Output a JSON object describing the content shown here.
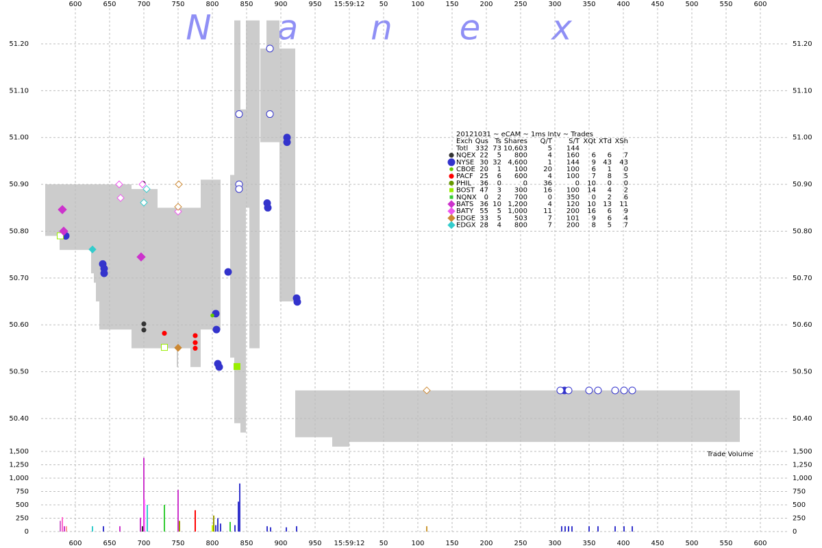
{
  "chart_data": {
    "type": "scatter",
    "watermark": [
      "N",
      "a",
      "n",
      "e",
      "x"
    ],
    "volume_label": "Trade Volume",
    "xlim": [
      550,
      1640
    ],
    "xticks": [
      600,
      650,
      700,
      750,
      800,
      850,
      900,
      950,
      {
        "value": 1000,
        "label": "15:59:12"
      },
      {
        "value": 1050,
        "label": "50"
      },
      {
        "value": 1100,
        "label": "100"
      },
      {
        "value": 1150,
        "label": "150"
      },
      {
        "value": 1200,
        "label": "200"
      },
      {
        "value": 1250,
        "label": "250"
      },
      {
        "value": 1300,
        "label": "300"
      },
      {
        "value": 1350,
        "label": "350"
      },
      {
        "value": 1400,
        "label": "400"
      },
      {
        "value": 1450,
        "label": "450"
      },
      {
        "value": 1500,
        "label": "500"
      },
      {
        "value": 1550,
        "label": "550"
      },
      {
        "value": 1600,
        "label": "600"
      }
    ],
    "ylim": [
      50.34,
      51.28
    ],
    "yticks": [
      {
        "value": 50.4,
        "label": "50.40"
      },
      {
        "value": 50.5,
        "label": "50.50"
      },
      {
        "value": 50.6,
        "label": "50.60"
      },
      {
        "value": 50.7,
        "label": "50.70"
      },
      {
        "value": 50.8,
        "label": "50.80"
      },
      {
        "value": 50.9,
        "label": "50.90"
      },
      {
        "value": 51.0,
        "label": "51.00"
      },
      {
        "value": 51.1,
        "label": "51.10"
      },
      {
        "value": 51.2,
        "label": "51.20"
      }
    ],
    "volume_ylim": [
      0,
      1500
    ],
    "volume_yticks": [
      0,
      250,
      500,
      750,
      {
        "value": 1000,
        "label": "1,000"
      },
      {
        "value": 1250,
        "label": "1,250"
      },
      {
        "value": 1500,
        "label": "1,500"
      }
    ],
    "grid": true,
    "spread": {
      "color": "#cccccc",
      "x": [
        556,
        577,
        623,
        627,
        630,
        635,
        682,
        720,
        748,
        750,
        768,
        783,
        826,
        832,
        841,
        849,
        854,
        870,
        879,
        898,
        921,
        975,
        1000
      ],
      "x_end": [
        580,
        623,
        627,
        630,
        635,
        682,
        720,
        748,
        750,
        768,
        783,
        812,
        832,
        841,
        849,
        854,
        869,
        879,
        898,
        921,
        975,
        1000,
        1570
      ],
      "low": [
        50.79,
        50.76,
        50.71,
        50.69,
        50.65,
        50.59,
        50.55,
        50.55,
        50.51,
        50.55,
        50.51,
        50.59,
        50.53,
        50.39,
        50.37,
        50.85,
        50.55,
        50.99,
        50.99,
        50.65,
        50.36,
        50.34,
        50.35
      ],
      "high": [
        50.9,
        50.9,
        50.9,
        50.9,
        50.9,
        50.9,
        50.89,
        50.85,
        50.85,
        50.85,
        50.85,
        50.91,
        50.92,
        51.25,
        51.06,
        51.25,
        51.25,
        51.19,
        51.25,
        51.19,
        50.46,
        50.46,
        50.46
      ]
    },
    "table": {
      "title": "20121031 ~ eCAM ~ 1ms Intv ~ Trades",
      "columns": [
        "Exch",
        "Qus",
        "Ts",
        "Shares",
        "Q/T",
        "S/T",
        "XQt",
        "XTd",
        "XSh"
      ],
      "total": {
        "label": "Totl",
        "stats": [
          "332",
          "73",
          "10,603",
          "5",
          "144"
        ]
      }
    },
    "series": [
      {
        "name": "NQEX",
        "color": "#333333",
        "marker": "dot",
        "size": 4,
        "stats": [
          "22",
          "5",
          "800",
          "4",
          "160",
          "6",
          "6",
          "7"
        ],
        "x": [
          700,
          700,
          699
        ],
        "values": [
          50.602,
          50.589,
          50.902
        ]
      },
      {
        "name": "NYSE",
        "color": "#3333cc",
        "marker": "circle",
        "size": 5,
        "stats": [
          "30",
          "32",
          "4,600",
          "1",
          "144",
          "9",
          "43",
          "43"
        ],
        "x": [
          586,
          640,
          642,
          642,
          805,
          806,
          808,
          810,
          823,
          880,
          881,
          909,
          909,
          923,
          924,
          1314,
          839,
          839,
          839,
          884,
          884,
          1308,
          1320,
          1350,
          1363,
          1388,
          1401,
          1413
        ],
        "values": [
          50.79,
          50.73,
          50.72,
          50.71,
          50.624,
          50.59,
          50.517,
          50.51,
          50.713,
          50.86,
          50.85,
          51.0,
          50.99,
          50.657,
          50.649,
          50.46,
          51.05,
          50.9,
          50.89,
          51.19,
          51.05,
          50.46,
          50.46,
          50.46,
          50.46,
          50.46,
          50.46,
          50.46
        ],
        "hollow": [
          false,
          false,
          false,
          false,
          false,
          false,
          false,
          false,
          false,
          false,
          false,
          false,
          false,
          false,
          false,
          false,
          true,
          true,
          true,
          true,
          true,
          true,
          true,
          true,
          true,
          true,
          true,
          true
        ]
      },
      {
        "name": "CBOE",
        "color": "#66cc00",
        "marker": "dot",
        "size": 3,
        "stats": [
          "20",
          "1",
          "100",
          "20",
          "100",
          "6",
          "1",
          "0"
        ],
        "x": [
          800,
          835
        ],
        "values": [
          50.62,
          50.511
        ]
      },
      {
        "name": "PACF",
        "color": "#ff0000",
        "marker": "dot",
        "size": 4,
        "stats": [
          "25",
          "6",
          "600",
          "4",
          "100",
          "7",
          "8",
          "5"
        ],
        "x": [
          730,
          775,
          775,
          775
        ],
        "values": [
          50.582,
          50.577,
          50.562,
          50.55
        ]
      },
      {
        "name": "PHIL",
        "color": "#669900",
        "marker": "dot",
        "size": 4,
        "stats": [
          "36",
          "0",
          "0",
          "36",
          "0",
          "10",
          "0",
          "0"
        ],
        "x": [],
        "values": []
      },
      {
        "name": "BOST",
        "color": "#99ee00",
        "marker": "square",
        "size": 9,
        "stats": [
          "47",
          "3",
          "300",
          "16",
          "100",
          "14",
          "4",
          "2"
        ],
        "x": [
          578,
          730,
          836
        ],
        "values": [
          50.79,
          50.552,
          50.511
        ],
        "hollow": [
          true,
          true,
          false
        ]
      },
      {
        "name": "NQNX",
        "color": "#33cc33",
        "marker": "square",
        "size": 4,
        "stats": [
          "0",
          "2",
          "700",
          "0",
          "350",
          "0",
          "2",
          "6"
        ],
        "x": [],
        "values": []
      },
      {
        "name": "BATS",
        "color": "#cc33cc",
        "marker": "diamond",
        "size": 6,
        "stats": [
          "36",
          "10",
          "1,200",
          "4",
          "120",
          "10",
          "13",
          "11"
        ],
        "x": [
          581,
          583,
          696
        ],
        "values": [
          50.846,
          50.8,
          50.745
        ]
      },
      {
        "name": "BATY",
        "color": "#ee55ee",
        "marker": "diamond",
        "size": 5,
        "stats": [
          "55",
          "5",
          "1,000",
          "11",
          "200",
          "16",
          "6",
          "9"
        ],
        "x": [
          664,
          666,
          698,
          750
        ],
        "values": [
          50.9,
          50.871,
          50.9,
          50.842
        ],
        "hollow": [
          true,
          true,
          true,
          true
        ]
      },
      {
        "name": "EDGE",
        "color": "#cc8833",
        "marker": "diamond",
        "size": 5,
        "stats": [
          "33",
          "5",
          "503",
          "7",
          "101",
          "9",
          "6",
          "4"
        ],
        "x": [
          751,
          750,
          750,
          1113
        ],
        "values": [
          50.9,
          50.852,
          50.551,
          50.46
        ],
        "hollow": [
          true,
          true,
          false,
          true
        ]
      },
      {
        "name": "EDGX",
        "color": "#33cccc",
        "marker": "diamond",
        "size": 5,
        "stats": [
          "28",
          "4",
          "800",
          "7",
          "200",
          "8",
          "5",
          "7"
        ],
        "x": [
          625,
          700,
          704
        ],
        "values": [
          50.761,
          50.861,
          50.89
        ],
        "hollow": [
          false,
          true,
          true
        ]
      }
    ],
    "volume": {
      "x": [
        578,
        581,
        584,
        587,
        625,
        641,
        665,
        695,
        698,
        700,
        701,
        705,
        730,
        750,
        752,
        775,
        800,
        802,
        805,
        808,
        812,
        826,
        833,
        838,
        840,
        880,
        885,
        908,
        923,
        1113,
        1310,
        1315,
        1320,
        1325,
        1350,
        1363,
        1388,
        1401,
        1413
      ],
      "values": [
        200,
        270,
        100,
        100,
        100,
        100,
        100,
        260,
        100,
        1380,
        600,
        500,
        500,
        780,
        200,
        400,
        120,
        300,
        120,
        250,
        150,
        180,
        120,
        560,
        900,
        100,
        80,
        80,
        100,
        100,
        100,
        100,
        100,
        100,
        100,
        100,
        100,
        100,
        100
      ],
      "colors": [
        "#cc66cc",
        "#ff66cc",
        "#cc33cc",
        "#ff9999",
        "#33cccc",
        "#3333cc",
        "#cc33cc",
        "#cc33cc",
        "#333333",
        "#cc33cc",
        "#ff66ff",
        "#33cccc",
        "#33cc33",
        "#cc33cc",
        "#999900",
        "#ff0000",
        "#ccff00",
        "#999900",
        "#3333cc",
        "#3333cc",
        "#3333cc",
        "#33cc33",
        "#3333cc",
        "#3333cc",
        "#3333cc",
        "#3333cc",
        "#3333cc",
        "#3333cc",
        "#3333cc",
        "#cc9933",
        "#3333cc",
        "#3333cc",
        "#3333cc",
        "#3333cc",
        "#3333cc",
        "#3333cc",
        "#3333cc",
        "#3333cc",
        "#3333cc"
      ]
    }
  }
}
